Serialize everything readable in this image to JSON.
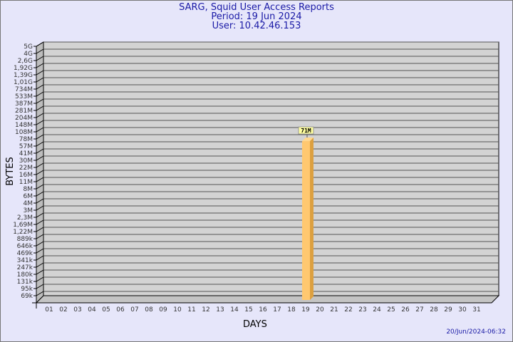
{
  "header": {
    "title": "SARG, Squid User Access Reports",
    "period": "Period: 19 Jun 2024",
    "user": "User: 10.42.46.153"
  },
  "footer": {
    "timestamp": "20/Jun/2024-06:32"
  },
  "colors": {
    "background": "#e6e6fa",
    "wall": "#d3d3d3",
    "bar_front": "#ffc870",
    "bar_side": "#dca040",
    "title": "#1a1aa6"
  },
  "chart_data": {
    "type": "bar",
    "title": "SARG, Squid User Access Reports",
    "xlabel": "DAYS",
    "ylabel": "BYTES",
    "y_scale": "log",
    "y_tick_labels": [
      "5G",
      "4G",
      "2,6G",
      "1,92G",
      "1,39G",
      "1,01G",
      "734M",
      "533M",
      "387M",
      "281M",
      "204M",
      "148M",
      "108M",
      "78M",
      "57M",
      "41M",
      "30M",
      "22M",
      "16M",
      "11M",
      "8M",
      "6M",
      "4M",
      "3M",
      "2,3M",
      "1,69M",
      "1,22M",
      "889k",
      "646k",
      "469k",
      "341k",
      "247k",
      "180k",
      "131k",
      "95k",
      "69k"
    ],
    "categories": [
      "01",
      "02",
      "03",
      "04",
      "05",
      "06",
      "07",
      "08",
      "09",
      "10",
      "11",
      "12",
      "13",
      "14",
      "15",
      "16",
      "17",
      "18",
      "19",
      "20",
      "21",
      "22",
      "23",
      "24",
      "25",
      "26",
      "27",
      "28",
      "29",
      "30",
      "31"
    ],
    "values": [
      0,
      0,
      0,
      0,
      0,
      0,
      0,
      0,
      0,
      0,
      0,
      0,
      0,
      0,
      0,
      0,
      0,
      0,
      71000000,
      0,
      0,
      0,
      0,
      0,
      0,
      0,
      0,
      0,
      0,
      0,
      0
    ],
    "data_labels": {
      "19": "71M"
    },
    "grid": true
  }
}
